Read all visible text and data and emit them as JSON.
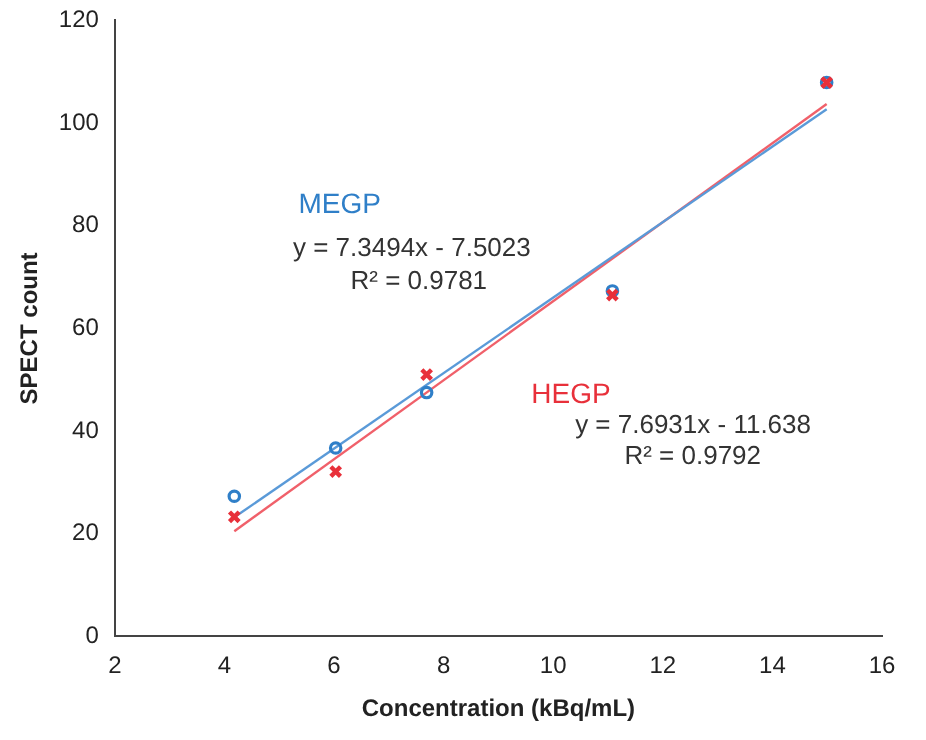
{
  "chart_data": {
    "type": "scatter",
    "xlabel": "Concentration (kBq/mL)",
    "ylabel": "SPECT count",
    "xlim": [
      2,
      16
    ],
    "xticks": [
      2,
      4,
      6,
      8,
      10,
      12,
      14,
      16
    ],
    "ylim": [
      0,
      120
    ],
    "yticks": [
      0,
      20,
      40,
      60,
      80,
      100,
      120
    ],
    "grid": false,
    "legend": false,
    "series": [
      {
        "name": "MEGP",
        "type": "scatter",
        "marker": "circle",
        "color": "#2f7fc8",
        "x": [
          4.18,
          6.03,
          7.69,
          11.08,
          14.99
        ],
        "values": [
          27.3,
          36.7,
          47.5,
          67.3,
          107.9
        ]
      },
      {
        "name": "HEGP",
        "type": "scatter",
        "marker": "cross",
        "color": "#e8303a",
        "x": [
          4.18,
          6.03,
          7.69,
          11.08,
          14.99
        ],
        "values": [
          23.3,
          32.1,
          51.0,
          66.5,
          107.9
        ]
      },
      {
        "type": "line",
        "marker": "none",
        "line_style": "solid",
        "color": "#5a9ad8",
        "x": [
          4.18,
          14.99
        ],
        "values": [
          23.2,
          102.7
        ]
      },
      {
        "type": "line",
        "marker": "none",
        "line_style": "solid",
        "color": "#f0606a",
        "x": [
          4.18,
          14.99
        ],
        "values": [
          20.5,
          103.7
        ]
      }
    ],
    "annotations": [
      "y = 7.3494x - 7.5023",
      "R² = 0.9781",
      "y = 7.6931x - 11.638",
      "R² = 0.9792"
    ]
  }
}
